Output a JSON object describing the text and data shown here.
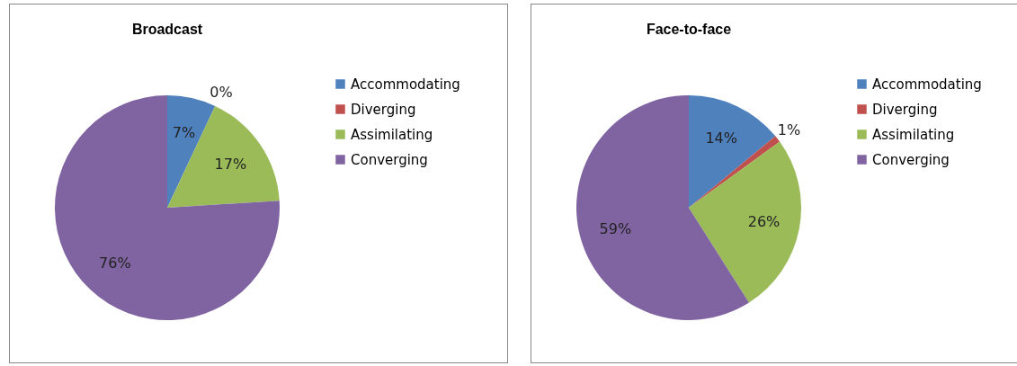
{
  "chart_data": [
    {
      "type": "pie",
      "title": "Broadcast",
      "categories": [
        "Accommodating",
        "Diverging",
        "Assimilating",
        "Converging"
      ],
      "values": [
        7,
        0,
        17,
        76
      ],
      "colors": [
        "#4f81bd",
        "#c0504d",
        "#9bbb59",
        "#8064a2"
      ],
      "value_labels": [
        "7%",
        "0%",
        "17%",
        "76%"
      ],
      "legend": "right"
    },
    {
      "type": "pie",
      "title": "Face-to-face",
      "categories": [
        "Accommodating",
        "Diverging",
        "Assimilating",
        "Converging"
      ],
      "values": [
        14,
        1,
        26,
        59
      ],
      "colors": [
        "#4f81bd",
        "#c0504d",
        "#9bbb59",
        "#8064a2"
      ],
      "value_labels": [
        "14%",
        "1%",
        "26%",
        "59%"
      ],
      "legend": "right"
    }
  ]
}
